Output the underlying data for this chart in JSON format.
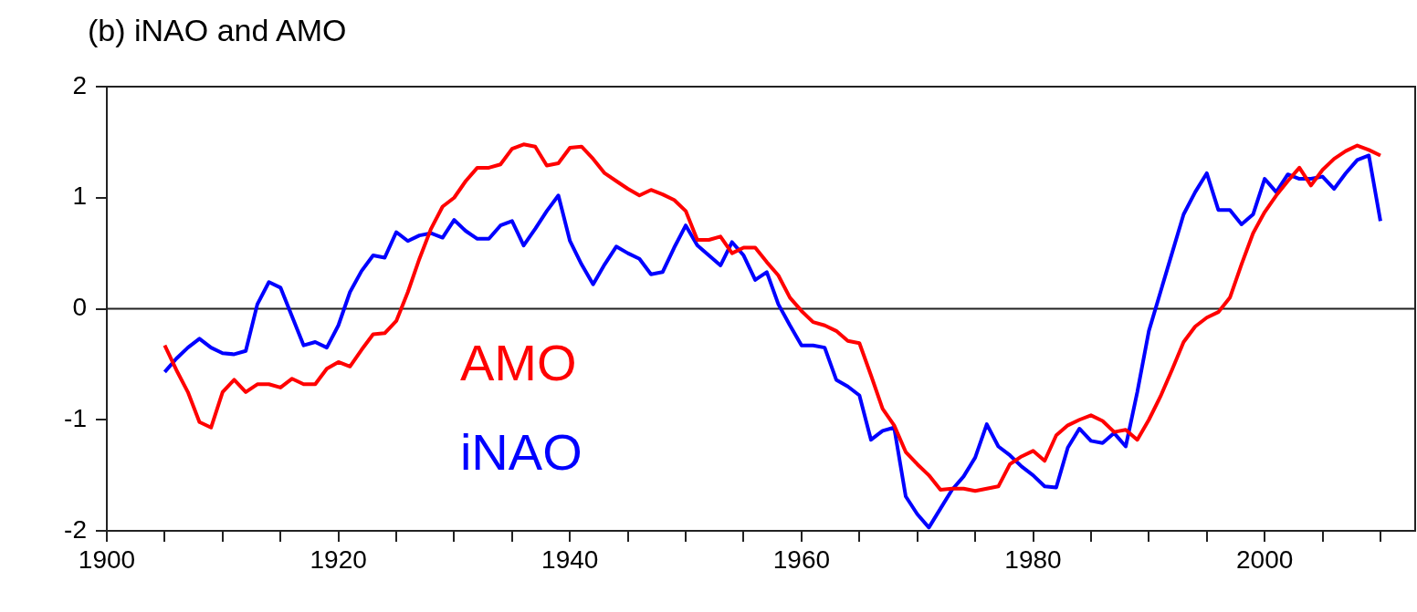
{
  "chart_data": {
    "type": "line",
    "title": "(b) iNAO and AMO",
    "x": [
      1905,
      1906,
      1907,
      1908,
      1909,
      1910,
      1911,
      1912,
      1913,
      1914,
      1915,
      1916,
      1917,
      1918,
      1919,
      1920,
      1921,
      1922,
      1923,
      1924,
      1925,
      1926,
      1927,
      1928,
      1929,
      1930,
      1931,
      1932,
      1933,
      1934,
      1935,
      1936,
      1937,
      1938,
      1939,
      1940,
      1941,
      1942,
      1943,
      1944,
      1945,
      1946,
      1947,
      1948,
      1949,
      1950,
      1951,
      1952,
      1953,
      1954,
      1955,
      1956,
      1957,
      1958,
      1959,
      1960,
      1961,
      1962,
      1963,
      1964,
      1965,
      1966,
      1967,
      1968,
      1969,
      1970,
      1971,
      1972,
      1973,
      1974,
      1975,
      1976,
      1977,
      1978,
      1979,
      1980,
      1981,
      1982,
      1983,
      1984,
      1985,
      1986,
      1987,
      1988,
      1989,
      1990,
      1991,
      1992,
      1993,
      1994,
      1995,
      1996,
      1997,
      1998,
      1999,
      2000,
      2001,
      2002,
      2003,
      2004,
      2005,
      2006,
      2007,
      2008,
      2009,
      2010
    ],
    "series": [
      {
        "name": "AMO",
        "color": "#ff0000",
        "values": [
          -0.33,
          -0.55,
          -0.75,
          -1.02,
          -1.07,
          -0.75,
          -0.64,
          -0.75,
          -0.68,
          -0.68,
          -0.71,
          -0.63,
          -0.68,
          -0.68,
          -0.54,
          -0.48,
          -0.52,
          -0.37,
          -0.23,
          -0.22,
          -0.11,
          0.15,
          0.45,
          0.72,
          0.92,
          1.0,
          1.15,
          1.27,
          1.27,
          1.3,
          1.44,
          1.48,
          1.46,
          1.29,
          1.31,
          1.45,
          1.46,
          1.35,
          1.22,
          1.15,
          1.08,
          1.02,
          1.07,
          1.03,
          0.98,
          0.88,
          0.62,
          0.62,
          0.65,
          0.5,
          0.55,
          0.55,
          0.42,
          0.3,
          0.1,
          -0.02,
          -0.12,
          -0.15,
          -0.2,
          -0.29,
          -0.31,
          -0.6,
          -0.9,
          -1.05,
          -1.29,
          -1.4,
          -1.5,
          -1.63,
          -1.62,
          -1.62,
          -1.64,
          -1.62,
          -1.6,
          -1.4,
          -1.33,
          -1.28,
          -1.37,
          -1.14,
          -1.05,
          -1.0,
          -0.96,
          -1.01,
          -1.11,
          -1.09,
          -1.18,
          -1.0,
          -0.79,
          -0.55,
          -0.3,
          -0.16,
          -0.08,
          -0.03,
          0.1,
          0.4,
          0.68,
          0.87,
          1.02,
          1.15,
          1.27,
          1.11,
          1.25,
          1.35,
          1.42,
          1.47,
          1.43,
          1.38
        ]
      },
      {
        "name": "iNAO",
        "color": "#0000ff",
        "values": [
          -0.57,
          -0.45,
          -0.35,
          -0.27,
          -0.35,
          -0.4,
          -0.41,
          -0.38,
          0.04,
          0.24,
          0.19,
          -0.07,
          -0.33,
          -0.3,
          -0.35,
          -0.15,
          0.15,
          0.34,
          0.48,
          0.46,
          0.69,
          0.61,
          0.66,
          0.68,
          0.64,
          0.8,
          0.7,
          0.63,
          0.63,
          0.75,
          0.79,
          0.57,
          0.72,
          0.88,
          1.02,
          0.61,
          0.4,
          0.22,
          0.4,
          0.56,
          0.5,
          0.45,
          0.31,
          0.33,
          0.55,
          0.75,
          0.57,
          0.48,
          0.39,
          0.6,
          0.48,
          0.26,
          0.33,
          0.04,
          -0.15,
          -0.33,
          -0.33,
          -0.35,
          -0.64,
          -0.7,
          -0.78,
          -1.18,
          -1.1,
          -1.07,
          -1.69,
          -1.85,
          -1.97,
          -1.8,
          -1.63,
          -1.51,
          -1.34,
          -1.04,
          -1.24,
          -1.32,
          -1.42,
          -1.5,
          -1.6,
          -1.61,
          -1.25,
          -1.08,
          -1.19,
          -1.21,
          -1.12,
          -1.24,
          -0.75,
          -0.2,
          0.15,
          0.5,
          0.85,
          1.05,
          1.22,
          0.89,
          0.89,
          0.76,
          0.85,
          1.17,
          1.05,
          1.21,
          1.17,
          1.17,
          1.19,
          1.08,
          1.22,
          1.34,
          1.38,
          0.79
        ]
      }
    ],
    "xlim": [
      1900,
      2013
    ],
    "xticks": [
      1900,
      {
        "value": 1905,
        "label": null
      },
      {
        "value": 1910,
        "label": null
      },
      {
        "value": 1915,
        "label": null
      },
      1920,
      {
        "value": 1925,
        "label": null
      },
      {
        "value": 1930,
        "label": null
      },
      {
        "value": 1935,
        "label": null
      },
      1940,
      {
        "value": 1945,
        "label": null
      },
      {
        "value": 1950,
        "label": null
      },
      {
        "value": 1955,
        "label": null
      },
      1960,
      {
        "value": 1965,
        "label": null
      },
      {
        "value": 1970,
        "label": null
      },
      {
        "value": 1975,
        "label": null
      },
      1980,
      {
        "value": 1985,
        "label": null
      },
      {
        "value": 1990,
        "label": null
      },
      {
        "value": 1995,
        "label": null
      },
      2000,
      {
        "value": 2005,
        "label": null
      },
      {
        "value": 2010,
        "label": null
      }
    ],
    "ylim": [
      -2,
      2
    ],
    "yticks": [
      -2,
      -1,
      0,
      1,
      2
    ],
    "ref_lines": [
      {
        "axis": "y",
        "value": 0
      }
    ]
  }
}
